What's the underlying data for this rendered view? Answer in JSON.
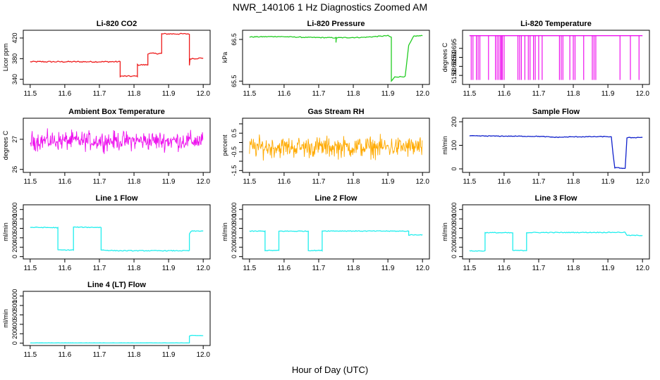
{
  "page": {
    "title": "NWR_140106  1 Hz Diagnostics Zoomed AM",
    "xlabel": "Hour of Day (UTC)"
  },
  "colors": {
    "red": "#ee1c1c",
    "green": "#22cc22",
    "magenta": "#ee11ee",
    "orange": "#ffaa00",
    "blue": "#1122cc",
    "cyan": "#22eeee"
  },
  "chart_data": [
    {
      "type": "line",
      "title": "Li-820 CO2",
      "ylabel": "Licor ppm",
      "color": "red",
      "xlim": [
        11.48,
        12.02
      ],
      "ylim": [
        330,
        435
      ],
      "yticks": [
        340,
        380,
        420
      ],
      "segments": [
        [
          [
            11.5,
            374
          ],
          [
            11.76,
            374
          ],
          [
            11.76,
            346
          ],
          [
            11.81,
            346
          ],
          [
            11.81,
            368
          ],
          [
            11.84,
            368
          ],
          [
            11.84,
            390
          ],
          [
            11.88,
            390
          ],
          [
            11.88,
            428
          ],
          [
            11.96,
            428
          ],
          [
            11.96,
            366
          ],
          [
            11.962,
            380
          ],
          [
            12.0,
            381
          ]
        ]
      ],
      "noise": 1.2
    },
    {
      "type": "line",
      "title": "Li-820 Pressure",
      "ylabel": "kPa",
      "color": "green",
      "xlim": [
        11.48,
        12.02
      ],
      "ylim": [
        65.42,
        66.72
      ],
      "yticks": [
        65.5,
        66.5
      ],
      "segments": [
        [
          [
            11.5,
            66.56
          ],
          [
            11.58,
            66.57
          ],
          [
            11.66,
            66.55
          ],
          [
            11.75,
            66.54
          ],
          [
            11.75,
            66.42
          ],
          [
            11.751,
            66.54
          ],
          [
            11.83,
            66.55
          ],
          [
            11.9,
            66.59
          ],
          [
            11.91,
            66.55
          ],
          [
            11.91,
            65.5
          ],
          [
            11.92,
            65.6
          ],
          [
            11.95,
            65.61
          ],
          [
            11.96,
            66.35
          ],
          [
            11.975,
            66.58
          ],
          [
            12.0,
            66.59
          ]
        ]
      ],
      "noise": 0.01
    },
    {
      "type": "spikes",
      "title": "Li-820 Temperature",
      "ylabel": "degrees C",
      "color": "magenta",
      "xlim": [
        11.48,
        12.02
      ],
      "ylim": [
        51.675,
        51.705
      ],
      "yticks": [
        51.68,
        51.685,
        51.69,
        51.695
      ],
      "baseline": 51.702,
      "low": 51.6775,
      "spike_x": [
        11.505,
        11.51,
        11.52,
        11.525,
        11.53,
        11.555,
        11.575,
        11.58,
        11.585,
        11.59,
        11.592,
        11.595,
        11.6,
        11.64,
        11.645,
        11.65,
        11.66,
        11.67,
        11.675,
        11.685,
        11.69,
        11.7,
        11.71,
        11.76,
        11.765,
        11.77,
        11.79,
        11.8,
        11.805,
        11.83,
        11.855,
        11.86,
        11.865,
        11.935,
        11.965,
        11.99
      ]
    },
    {
      "type": "noise",
      "title": "Ambient Box Temperature",
      "ylabel": "degrees C",
      "color": "magenta",
      "xlim": [
        11.48,
        12.02
      ],
      "ylim": [
        25.9,
        27.7
      ],
      "yticks": [
        26.0,
        27.0
      ],
      "center": 26.95,
      "amplitude": 0.42
    },
    {
      "type": "noise",
      "title": "Gas Stream RH",
      "ylabel": "percent",
      "color": "orange",
      "xlim": [
        11.48,
        12.02
      ],
      "ylim": [
        -1.6,
        1.3
      ],
      "yticks": [
        -1.5,
        -0.5,
        0.5
      ],
      "yticks_minor": [
        -1,
        0,
        1
      ],
      "center": -0.25,
      "amplitude": 0.75
    },
    {
      "type": "line",
      "title": "Sample Flow",
      "ylabel": "ml/min",
      "color": "blue",
      "xlim": [
        11.48,
        12.02
      ],
      "ylim": [
        -15,
        215
      ],
      "yticks": [
        0,
        100,
        200
      ],
      "segments": [
        [
          [
            11.5,
            140
          ],
          [
            11.7,
            138
          ],
          [
            11.75,
            134
          ],
          [
            11.8,
            136
          ],
          [
            11.9,
            137
          ],
          [
            11.91,
            135
          ],
          [
            11.915,
            60
          ],
          [
            11.92,
            5
          ],
          [
            11.95,
            2
          ],
          [
            11.955,
            132
          ],
          [
            12.0,
            134
          ]
        ]
      ],
      "noise": 1.5
    },
    {
      "type": "line",
      "title": "Line 1 Flow",
      "ylabel": "ml/min",
      "color": "cyan",
      "xlim": [
        11.48,
        12.02
      ],
      "ylim": [
        -50,
        1100
      ],
      "yticks": [
        0,
        200,
        400,
        600,
        800,
        1000
      ],
      "segments": [
        [
          [
            11.5,
            620
          ],
          [
            11.58,
            615
          ],
          [
            11.58,
            140
          ],
          [
            11.625,
            140
          ],
          [
            11.625,
            625
          ],
          [
            11.705,
            620
          ],
          [
            11.705,
            140
          ],
          [
            11.75,
            125
          ],
          [
            11.96,
            125
          ],
          [
            11.96,
            480
          ],
          [
            11.965,
            540
          ],
          [
            12.0,
            545
          ]
        ]
      ],
      "noise": 8
    },
    {
      "type": "line",
      "title": "Line 2 Flow",
      "ylabel": "ml/min",
      "color": "cyan",
      "xlim": [
        11.48,
        12.02
      ],
      "ylim": [
        -50,
        1100
      ],
      "yticks": [
        0,
        200,
        400,
        600,
        800,
        1000
      ],
      "segments": [
        [
          [
            11.5,
            540
          ],
          [
            11.545,
            540
          ],
          [
            11.545,
            130
          ],
          [
            11.585,
            130
          ],
          [
            11.585,
            540
          ],
          [
            11.67,
            540
          ],
          [
            11.67,
            130
          ],
          [
            11.71,
            130
          ],
          [
            11.71,
            545
          ],
          [
            11.96,
            540
          ],
          [
            11.96,
            460
          ],
          [
            12.0,
            465
          ]
        ]
      ],
      "noise": 8
    },
    {
      "type": "line",
      "title": "Line 3 Flow",
      "ylabel": "ml/min",
      "color": "cyan",
      "xlim": [
        11.48,
        12.02
      ],
      "ylim": [
        -50,
        1100
      ],
      "yticks": [
        0,
        200,
        400,
        600,
        800,
        1000
      ],
      "segments": [
        [
          [
            11.5,
            120
          ],
          [
            11.545,
            120
          ],
          [
            11.545,
            510
          ],
          [
            11.625,
            505
          ],
          [
            11.625,
            130
          ],
          [
            11.665,
            130
          ],
          [
            11.665,
            510
          ],
          [
            11.95,
            515
          ],
          [
            11.955,
            450
          ],
          [
            12.0,
            450
          ]
        ]
      ],
      "noise": 8
    },
    {
      "type": "line",
      "title": "Line 4 (LT) Flow",
      "ylabel": "ml/min",
      "color": "cyan",
      "xlim": [
        11.48,
        12.02
      ],
      "ylim": [
        -50,
        1100
      ],
      "yticks": [
        0,
        200,
        400,
        600,
        800,
        1000
      ],
      "segments": [
        [
          [
            11.5,
            5
          ],
          [
            11.96,
            5
          ],
          [
            11.96,
            150
          ],
          [
            11.965,
            165
          ],
          [
            12.0,
            160
          ]
        ]
      ],
      "noise": 2
    }
  ],
  "xticks": [
    11.5,
    11.6,
    11.7,
    11.8,
    11.9,
    12.0
  ]
}
